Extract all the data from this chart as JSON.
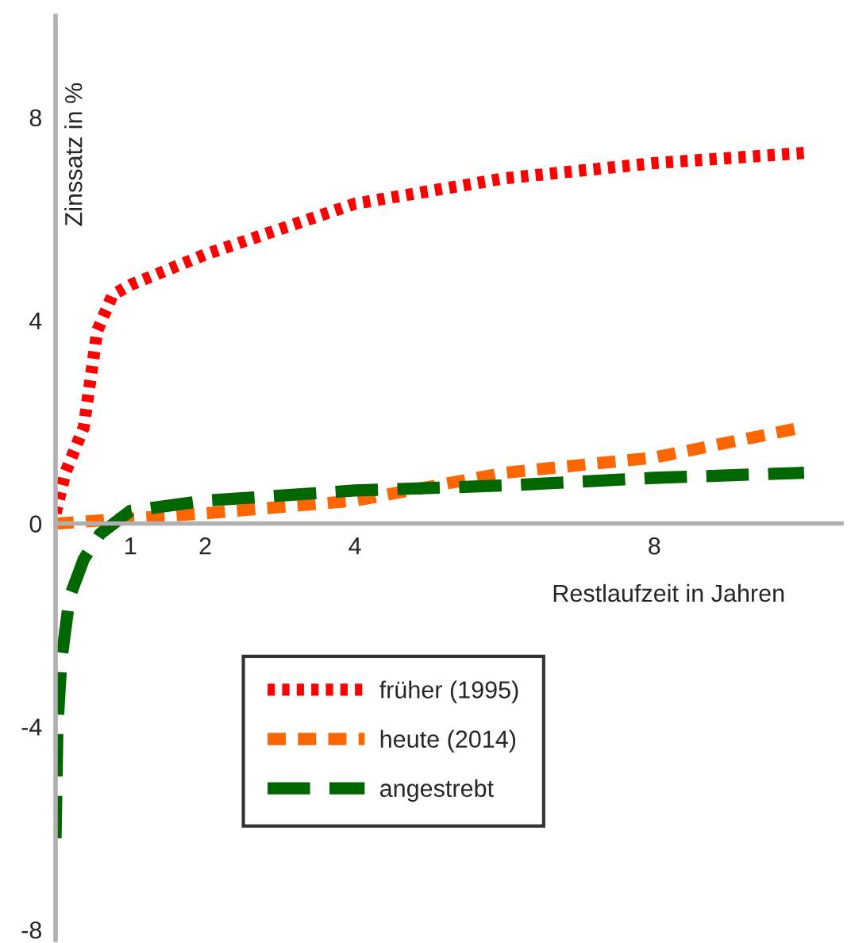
{
  "chart_data": {
    "type": "line",
    "xlabel": "Restlaufzeit in Jahren",
    "ylabel": "Zinssatz in %",
    "xlim": [
      0,
      10.5
    ],
    "ylim": [
      -8.2,
      10
    ],
    "xticks": [
      1,
      2,
      4,
      8
    ],
    "yticks": [
      -8,
      -4,
      0,
      4,
      8
    ],
    "grid": false,
    "legend": "bottom",
    "marker": "none",
    "series": [
      {
        "name": "früher (1995)",
        "color": "#ff0000",
        "line_style": "dotted",
        "x": [
          0,
          0.131,
          0.377,
          0.557,
          0.76,
          1,
          2,
          4,
          6,
          8,
          10
        ],
        "values": [
          0.2,
          1.0,
          1.9,
          3.8,
          4.5,
          4.7,
          5.3,
          6.3,
          6.8,
          7.1,
          7.3
        ]
      },
      {
        "name": "heute (2014)",
        "color": "#ff6600",
        "line_style": "dashed",
        "x": [
          0,
          0.5,
          1,
          2,
          4,
          6,
          8,
          10
        ],
        "values": [
          0,
          0.05,
          0.1,
          0.2,
          0.45,
          1.0,
          1.3,
          1.9
        ]
      },
      {
        "name": "angestrebt",
        "color": "#006600",
        "line_style": "longdash",
        "x": [
          0,
          0.025,
          0.077,
          0.188,
          0.377,
          0.597,
          1,
          2,
          4,
          6,
          8,
          10
        ],
        "values": [
          -6.2,
          -4.0,
          -2.7,
          -1.45,
          -0.7,
          -0.2,
          0.25,
          0.45,
          0.65,
          0.75,
          0.9,
          1.0
        ]
      }
    ]
  }
}
